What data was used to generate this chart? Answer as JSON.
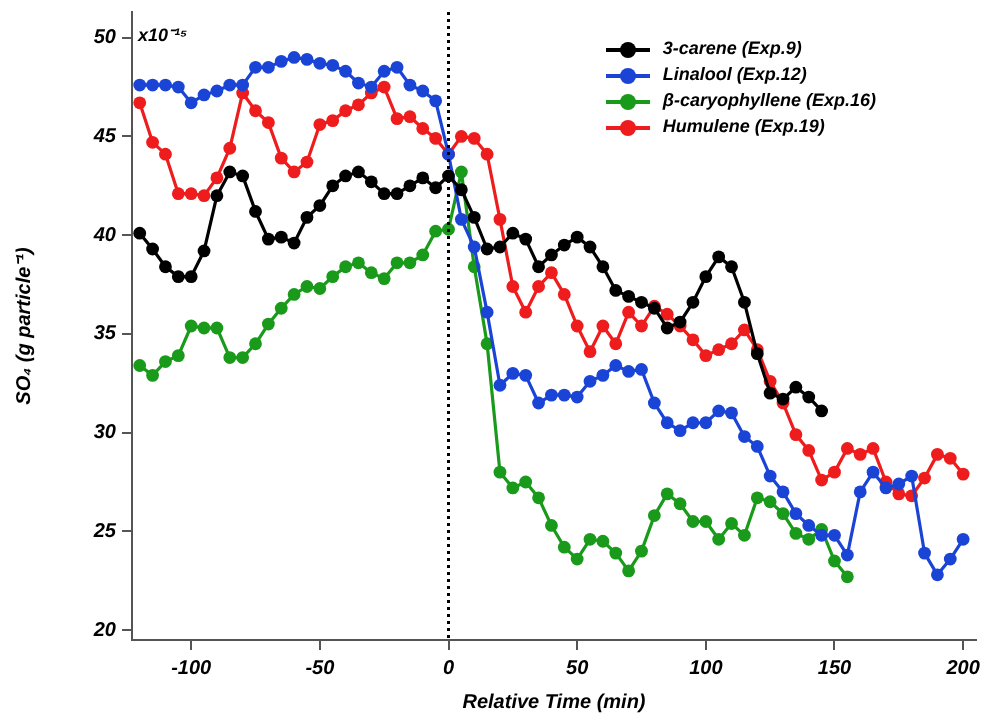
{
  "chart_data": {
    "type": "line",
    "xlabel": "Relative Time (min)",
    "ylabel": "SO₄ (g particle⁻¹)",
    "xlim": [
      -123,
      205
    ],
    "xticks": [
      -100,
      -50,
      0,
      50,
      100,
      150,
      200
    ],
    "ylim": [
      19.5,
      51.3
    ],
    "yticks": [
      20,
      25,
      30,
      35,
      40,
      45,
      50
    ],
    "annotations": [
      "x10⁻¹⁵"
    ],
    "grid": false,
    "legend": "top right",
    "marker": "circle",
    "line_style": "solid",
    "ref_lines": [
      {
        "axis": "x",
        "value": 0,
        "color": "#000000",
        "line_style": "dotted"
      }
    ],
    "series": [
      {
        "name": "3-carene (Exp.9)",
        "color": "#000000",
        "x": [
          -120,
          -115,
          -110,
          -105,
          -100,
          -95,
          -90,
          -85,
          -80,
          -75,
          -70,
          -65,
          -60,
          -55,
          -50,
          -45,
          -40,
          -35,
          -30,
          -25,
          -20,
          -15,
          -10,
          -5,
          0,
          5,
          10,
          15,
          20,
          25,
          30,
          35,
          40,
          45,
          50,
          55,
          60,
          65,
          70,
          75,
          80,
          85,
          90,
          95,
          100,
          105,
          110,
          115,
          120,
          125,
          130,
          135,
          140,
          145
        ],
        "values": [
          40.1,
          39.3,
          38.4,
          37.9,
          37.9,
          39.2,
          42.0,
          43.2,
          43.0,
          41.2,
          39.8,
          39.9,
          39.6,
          40.9,
          41.5,
          42.5,
          43.0,
          43.2,
          42.7,
          42.1,
          42.1,
          42.5,
          42.9,
          42.4,
          43.0,
          42.3,
          40.9,
          39.3,
          39.4,
          40.1,
          39.8,
          38.4,
          39.0,
          39.5,
          39.9,
          39.4,
          38.4,
          37.2,
          36.9,
          36.6,
          36.3,
          35.3,
          35.6,
          36.6,
          37.9,
          38.9,
          38.4,
          36.6,
          34.0,
          32.0,
          31.7,
          32.3,
          31.8,
          31.1
        ]
      },
      {
        "name": "Linalool (Exp.12)",
        "color": "#1a44d6",
        "x": [
          -120,
          -115,
          -110,
          -105,
          -100,
          -95,
          -90,
          -85,
          -80,
          -75,
          -70,
          -65,
          -60,
          -55,
          -50,
          -45,
          -40,
          -35,
          -30,
          -25,
          -20,
          -15,
          -10,
          -5,
          0,
          5,
          10,
          15,
          20,
          25,
          30,
          35,
          40,
          45,
          50,
          55,
          60,
          65,
          70,
          75,
          80,
          85,
          90,
          95,
          100,
          105,
          110,
          115,
          120,
          125,
          130,
          135,
          140,
          145,
          150,
          155,
          160,
          165,
          170,
          175,
          180,
          185,
          190,
          195,
          200
        ],
        "values": [
          47.6,
          47.6,
          47.6,
          47.5,
          46.7,
          47.1,
          47.3,
          47.6,
          47.6,
          48.5,
          48.5,
          48.8,
          49.0,
          48.9,
          48.7,
          48.6,
          48.3,
          47.7,
          47.5,
          48.3,
          48.5,
          47.6,
          47.3,
          46.8,
          44.1,
          40.8,
          39.4,
          36.1,
          32.4,
          33.0,
          32.9,
          31.5,
          31.9,
          31.9,
          31.8,
          32.6,
          32.9,
          33.4,
          33.1,
          33.2,
          31.5,
          30.5,
          30.1,
          30.5,
          30.5,
          31.1,
          31.0,
          29.8,
          29.3,
          27.8,
          27.0,
          25.9,
          25.3,
          24.8,
          24.8,
          23.8,
          27.0,
          28.0,
          27.2,
          27.4,
          27.8,
          23.9,
          22.8,
          23.6,
          24.6
        ]
      },
      {
        "name": "β-caryophyllene (Exp.16)",
        "color": "#1a9a1a",
        "x": [
          -120,
          -115,
          -110,
          -105,
          -100,
          -95,
          -90,
          -85,
          -80,
          -75,
          -70,
          -65,
          -60,
          -55,
          -50,
          -45,
          -40,
          -35,
          -30,
          -25,
          -20,
          -15,
          -10,
          -5,
          0,
          5,
          10,
          15,
          20,
          25,
          30,
          35,
          40,
          45,
          50,
          55,
          60,
          65,
          70,
          75,
          80,
          85,
          90,
          95,
          100,
          105,
          110,
          115,
          120,
          125,
          130,
          135,
          140,
          145,
          150,
          155
        ],
        "values": [
          33.4,
          32.9,
          33.6,
          33.9,
          35.4,
          35.3,
          35.3,
          33.8,
          33.8,
          34.5,
          35.5,
          36.3,
          37.0,
          37.4,
          37.3,
          37.9,
          38.4,
          38.6,
          38.1,
          37.8,
          38.6,
          38.6,
          39.0,
          40.2,
          40.3,
          43.2,
          38.4,
          34.5,
          28.0,
          27.2,
          27.5,
          26.7,
          25.3,
          24.2,
          23.6,
          24.6,
          24.5,
          23.9,
          23.0,
          24.0,
          25.8,
          26.9,
          26.4,
          25.5,
          25.5,
          24.6,
          25.4,
          24.8,
          26.7,
          26.5,
          25.9,
          24.9,
          24.6,
          25.1,
          23.5,
          22.7
        ]
      },
      {
        "name": "Humulene (Exp.19)",
        "color": "#ee1c1c",
        "x": [
          -120,
          -115,
          -110,
          -105,
          -100,
          -95,
          -90,
          -85,
          -80,
          -75,
          -70,
          -65,
          -60,
          -55,
          -50,
          -45,
          -40,
          -35,
          -30,
          -25,
          -20,
          -15,
          -10,
          -5,
          0,
          5,
          10,
          15,
          20,
          25,
          30,
          35,
          40,
          45,
          50,
          55,
          60,
          65,
          70,
          75,
          80,
          85,
          90,
          95,
          100,
          105,
          110,
          115,
          120,
          125,
          130,
          135,
          140,
          145,
          150,
          155,
          160,
          165,
          170,
          175,
          180,
          185,
          190,
          195,
          200
        ],
        "values": [
          46.7,
          44.7,
          44.1,
          42.1,
          42.1,
          42.0,
          42.9,
          44.4,
          47.2,
          46.3,
          45.7,
          43.9,
          43.2,
          43.7,
          45.6,
          45.8,
          46.3,
          46.6,
          47.2,
          47.5,
          45.9,
          46.0,
          45.4,
          44.9,
          44.1,
          45.0,
          44.9,
          44.1,
          40.8,
          37.4,
          36.1,
          37.4,
          38.1,
          37.0,
          35.4,
          34.1,
          35.4,
          34.5,
          36.1,
          35.4,
          36.4,
          36.0,
          35.4,
          34.7,
          33.9,
          34.2,
          34.5,
          35.2,
          34.2,
          32.6,
          31.5,
          29.9,
          29.1,
          27.6,
          28.0,
          29.2,
          28.9,
          29.2,
          27.5,
          26.9,
          26.8,
          27.7,
          28.9,
          28.7,
          27.9
        ]
      }
    ]
  }
}
